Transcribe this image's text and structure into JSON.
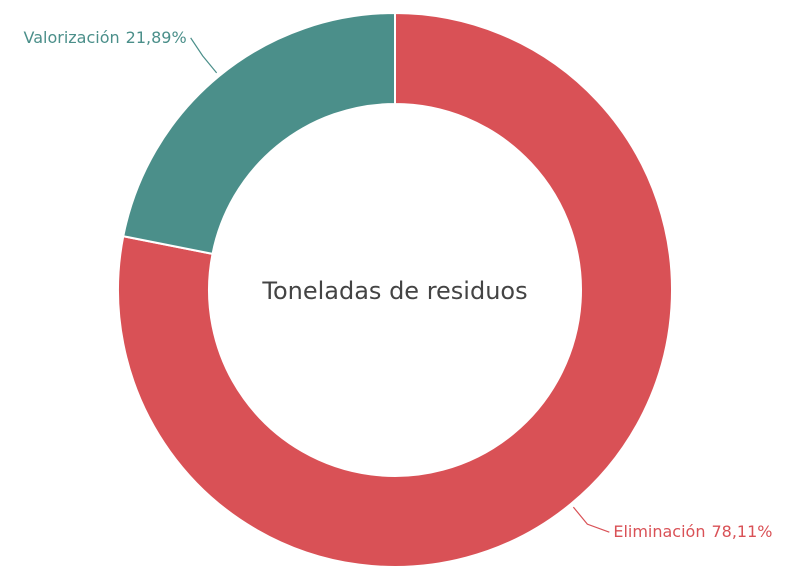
{
  "chart_data": {
    "type": "donut",
    "title": "Toneladas de residuos",
    "categories": [
      "Eliminación",
      "Valorización"
    ],
    "values": [
      78.11,
      21.89
    ],
    "value_labels": [
      "78,11%",
      "21,89%"
    ],
    "colors": [
      "#d95156",
      "#4b8f8a"
    ]
  }
}
